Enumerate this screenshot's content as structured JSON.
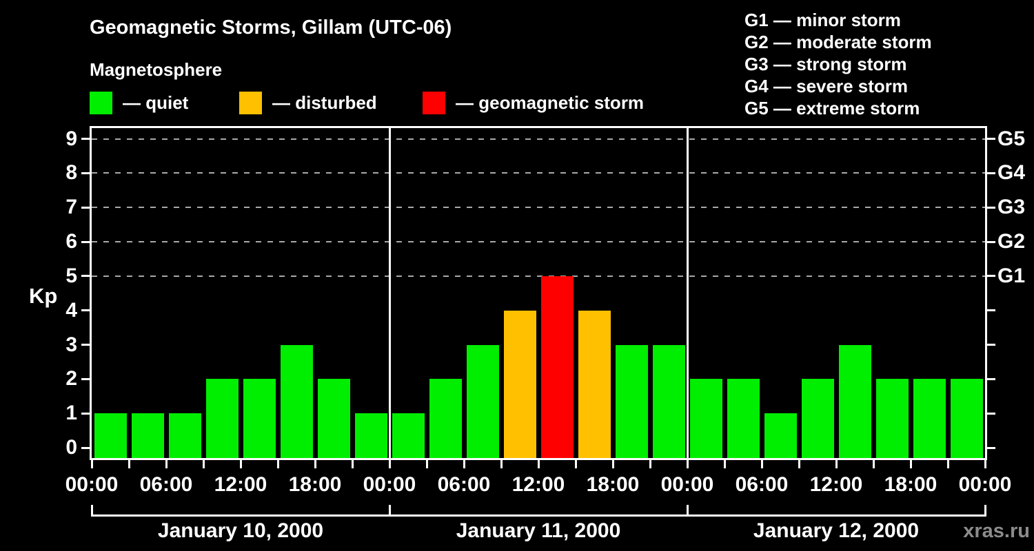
{
  "header": {
    "title": "Geomagnetic Storms, Gillam (UTC-06)",
    "subtitle": "Magnetosphere"
  },
  "legend": {
    "items": [
      {
        "name": "quiet",
        "label": "— quiet",
        "color": "#00ee00"
      },
      {
        "name": "disturbed",
        "label": "— disturbed",
        "color": "#ffc000"
      },
      {
        "name": "storm",
        "label": "— geomagnetic storm",
        "color": "#ff0000"
      }
    ]
  },
  "storm_scale": {
    "lines": [
      "G1 — minor storm",
      "G2 — moderate storm",
      "G3 — strong storm",
      "G4 — severe storm",
      "G5 — extreme storm"
    ]
  },
  "watermark": "xras.ru",
  "chart_data": {
    "type": "bar",
    "title": "Geomagnetic Storms, Gillam (UTC-06)",
    "subtitle": "Magnetosphere",
    "ylabel": "Kp",
    "ylim": [
      0,
      9
    ],
    "y_ticks": [
      0,
      1,
      2,
      3,
      4,
      5,
      6,
      7,
      8,
      9
    ],
    "dashed_grid_levels": [
      5,
      6,
      7,
      8,
      9
    ],
    "right_axis": [
      {
        "kp": 5,
        "label": "G1"
      },
      {
        "kp": 6,
        "label": "G2"
      },
      {
        "kp": 7,
        "label": "G3"
      },
      {
        "kp": 8,
        "label": "G4"
      },
      {
        "kp": 9,
        "label": "G5"
      }
    ],
    "bar_interval_hours": 3,
    "x_tick_labels": [
      "00:00",
      "06:00",
      "12:00",
      "18:00",
      "00:00",
      "06:00",
      "12:00",
      "18:00",
      "00:00",
      "06:00",
      "12:00",
      "18:00",
      "00:00"
    ],
    "days": [
      {
        "date": "January 10, 2000",
        "values": [
          1,
          1,
          1,
          2,
          2,
          3,
          2,
          1
        ]
      },
      {
        "date": "January 11, 2000",
        "values": [
          1,
          2,
          3,
          4,
          5,
          4,
          3,
          3
        ]
      },
      {
        "date": "January 12, 2000",
        "values": [
          2,
          2,
          1,
          2,
          3,
          2,
          2,
          2
        ]
      }
    ],
    "thresholds": {
      "disturbed_min": 4,
      "storm_min": 5
    },
    "colors": {
      "quiet": "#00ee00",
      "disturbed": "#ffc000",
      "storm": "#ff0000",
      "grid": "#aaaaaa",
      "axis": "#ffffff",
      "background": "#000000"
    }
  }
}
